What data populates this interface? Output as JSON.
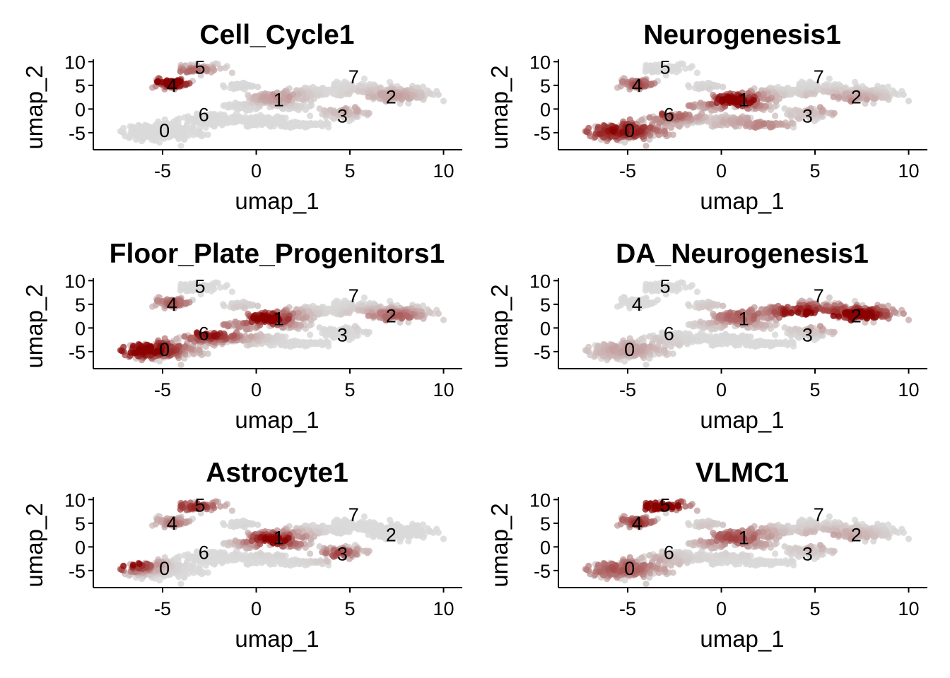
{
  "chart_data": [
    {
      "type": "scatter",
      "title": "Cell_Cycle1",
      "xlabel": "umap_1",
      "ylabel": "umap_2",
      "xticks": [
        "-5",
        "0",
        "5",
        "10"
      ],
      "yticks": [
        "-5",
        "0",
        "5",
        "10"
      ],
      "xlim": [
        -8.7,
        11.0
      ],
      "ylim": [
        -8.6,
        10.5
      ],
      "color_low": "#d9d9d9",
      "color_high": "#8b0000",
      "hotspots": [
        {
          "x": -4.6,
          "y": 5.6,
          "r": 1.4,
          "level": 1.0
        },
        {
          "x": -3.4,
          "y": 7.6,
          "r": 1.6,
          "level": 0.45
        },
        {
          "x": 1.2,
          "y": 2.5,
          "r": 1.6,
          "level": 0.25
        },
        {
          "x": 5.2,
          "y": 0.2,
          "r": 1.8,
          "level": 0.2
        },
        {
          "x": 7.2,
          "y": 2.5,
          "r": 2.0,
          "level": 0.2
        }
      ]
    },
    {
      "type": "scatter",
      "title": "Neurogenesis1",
      "xlabel": "umap_1",
      "ylabel": "umap_2",
      "xticks": [
        "-5",
        "0",
        "5",
        "10"
      ],
      "yticks": [
        "-5",
        "0",
        "5",
        "10"
      ],
      "xlim": [
        -8.7,
        11.0
      ],
      "ylim": [
        -8.6,
        10.5
      ],
      "color_low": "#d9d9d9",
      "color_high": "#8b0000",
      "hotspots": [
        {
          "x": -5.5,
          "y": -4.5,
          "r": 3.0,
          "level": 0.7
        },
        {
          "x": -3.0,
          "y": -0.5,
          "r": 2.2,
          "level": 0.6
        },
        {
          "x": 0.8,
          "y": 1.8,
          "r": 1.8,
          "level": 0.95
        },
        {
          "x": -4.5,
          "y": 5.2,
          "r": 1.4,
          "level": 0.5
        },
        {
          "x": 6.5,
          "y": 1.0,
          "r": 2.4,
          "level": 0.35
        },
        {
          "x": 2.0,
          "y": -3.5,
          "r": 2.5,
          "level": 0.3
        }
      ]
    },
    {
      "type": "scatter",
      "title": "Floor_Plate_Progenitors1",
      "xlabel": "umap_1",
      "ylabel": "umap_2",
      "xticks": [
        "-5",
        "0",
        "5",
        "10"
      ],
      "yticks": [
        "-5",
        "0",
        "5",
        "10"
      ],
      "xlim": [
        -8.7,
        11.0
      ],
      "ylim": [
        -8.6,
        10.5
      ],
      "color_low": "#d9d9d9",
      "color_high": "#8b0000",
      "hotspots": [
        {
          "x": -6.0,
          "y": -4.5,
          "r": 2.6,
          "level": 0.85
        },
        {
          "x": -2.5,
          "y": -1.0,
          "r": 2.2,
          "level": 0.75
        },
        {
          "x": 0.6,
          "y": 2.0,
          "r": 1.9,
          "level": 0.85
        },
        {
          "x": 7.3,
          "y": 2.2,
          "r": 2.0,
          "level": 0.45
        },
        {
          "x": -4.5,
          "y": 5.3,
          "r": 1.4,
          "level": 0.45
        }
      ]
    },
    {
      "type": "scatter",
      "title": "DA_Neurogenesis1",
      "xlabel": "umap_1",
      "ylabel": "umap_2",
      "xticks": [
        "-5",
        "0",
        "5",
        "10"
      ],
      "yticks": [
        "-5",
        "0",
        "5",
        "10"
      ],
      "xlim": [
        -8.7,
        11.0
      ],
      "ylim": [
        -8.6,
        10.5
      ],
      "color_low": "#d9d9d9",
      "color_high": "#8b0000",
      "hotspots": [
        {
          "x": 7.0,
          "y": 2.5,
          "r": 2.8,
          "level": 0.85
        },
        {
          "x": 4.2,
          "y": 3.4,
          "r": 2.0,
          "level": 0.8
        },
        {
          "x": 1.2,
          "y": 2.5,
          "r": 2.2,
          "level": 0.45
        },
        {
          "x": -5.0,
          "y": -4.5,
          "r": 2.5,
          "level": 0.2
        }
      ]
    },
    {
      "type": "scatter",
      "title": "Astrocyte1",
      "xlabel": "umap_1",
      "ylabel": "umap_2",
      "xticks": [
        "-5",
        "0",
        "5",
        "10"
      ],
      "yticks": [
        "-5",
        "0",
        "5",
        "10"
      ],
      "xlim": [
        -8.7,
        11.0
      ],
      "ylim": [
        -8.6,
        10.5
      ],
      "color_low": "#d9d9d9",
      "color_high": "#8b0000",
      "hotspots": [
        {
          "x": -6.8,
          "y": -3.8,
          "r": 1.5,
          "level": 0.9
        },
        {
          "x": -3.4,
          "y": 8.6,
          "r": 1.8,
          "level": 0.6
        },
        {
          "x": 1.0,
          "y": 1.5,
          "r": 1.8,
          "level": 0.85
        },
        {
          "x": 4.5,
          "y": -1.5,
          "r": 1.4,
          "level": 0.55
        },
        {
          "x": -4.5,
          "y": 5.0,
          "r": 1.3,
          "level": 0.35
        }
      ]
    },
    {
      "type": "scatter",
      "title": "VLMC1",
      "xlabel": "umap_1",
      "ylabel": "umap_2",
      "xticks": [
        "-5",
        "0",
        "5",
        "10"
      ],
      "yticks": [
        "-5",
        "0",
        "5",
        "10"
      ],
      "xlim": [
        -8.7,
        11.0
      ],
      "ylim": [
        -8.6,
        10.5
      ],
      "color_low": "#d9d9d9",
      "color_high": "#8b0000",
      "hotspots": [
        {
          "x": -3.3,
          "y": 8.8,
          "r": 1.8,
          "level": 1.0
        },
        {
          "x": -4.6,
          "y": 5.2,
          "r": 1.5,
          "level": 0.6
        },
        {
          "x": -5.5,
          "y": -4.5,
          "r": 3.0,
          "level": 0.45
        },
        {
          "x": 0.8,
          "y": 2.0,
          "r": 2.3,
          "level": 0.5
        },
        {
          "x": 6.0,
          "y": 1.5,
          "r": 2.5,
          "level": 0.25
        }
      ]
    }
  ],
  "clusters": [
    {
      "id": "0",
      "x": -4.9,
      "y": -4.6
    },
    {
      "id": "1",
      "x": 1.2,
      "y": 1.9
    },
    {
      "id": "2",
      "x": 7.2,
      "y": 2.5
    },
    {
      "id": "3",
      "x": 4.6,
      "y": -1.5
    },
    {
      "id": "4",
      "x": -4.5,
      "y": 5.0
    },
    {
      "id": "5",
      "x": -3.0,
      "y": 8.8
    },
    {
      "id": "6",
      "x": -2.8,
      "y": -1.2
    },
    {
      "id": "7",
      "x": 5.2,
      "y": 6.8
    }
  ]
}
